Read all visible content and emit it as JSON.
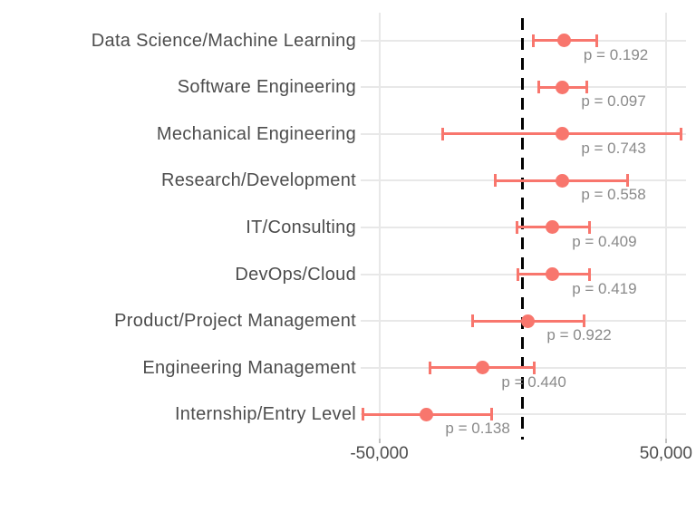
{
  "chart_data": {
    "type": "scatter",
    "subtype": "forest-plot-with-error-bars",
    "title": "",
    "xlabel": "",
    "ylabel": "",
    "xlim": [
      -56500,
      57000
    ],
    "grid": true,
    "legend": null,
    "reference_line_x": 0,
    "x_ticks": [
      {
        "value": -50000,
        "label": "-50,000"
      },
      {
        "value": 50000,
        "label": "50,000"
      }
    ],
    "rows": [
      {
        "category": "Data Science/Machine Learning",
        "estimate": 14500,
        "ci_low": 3600,
        "ci_high": 25800,
        "p_label": "p = 0.192"
      },
      {
        "category": "Software Engineering",
        "estimate": 13700,
        "ci_low": 5500,
        "ci_high": 22300,
        "p_label": "p = 0.097"
      },
      {
        "category": "Mechanical Engineering",
        "estimate": 13700,
        "ci_low": -28000,
        "ci_high": 55400,
        "p_label": "p = 0.743"
      },
      {
        "category": "Research/Development",
        "estimate": 13700,
        "ci_low": -9400,
        "ci_high": 36700,
        "p_label": "p = 0.558"
      },
      {
        "category": "IT/Consulting",
        "estimate": 10500,
        "ci_low": -2100,
        "ci_high": 23200,
        "p_label": "p = 0.409"
      },
      {
        "category": "DevOps/Cloud",
        "estimate": 10500,
        "ci_low": -1600,
        "ci_high": 23200,
        "p_label": "p = 0.419"
      },
      {
        "category": "Product/Project Management",
        "estimate": 1700,
        "ci_low": -17300,
        "ci_high": 21300,
        "p_label": "p = 0.922"
      },
      {
        "category": "Engineering Management",
        "estimate": -14100,
        "ci_low": -32400,
        "ci_high": 3900,
        "p_label": "p = 0.440"
      },
      {
        "category": "Internship/Entry Level",
        "estimate": -33700,
        "ci_low": -55800,
        "ci_high": -10900,
        "p_label": "p = 0.138"
      }
    ]
  },
  "colors": {
    "point": "#F8766D",
    "errorbar": "#F8766D",
    "reference_line": "#000000",
    "gridline": "#E8E8E8",
    "axis_tick": "#C0C0C0",
    "category_text": "#4D4D4D",
    "axis_text": "#4D4D4D",
    "p_text": "#8A8A8A",
    "background": "#FFFFFF"
  }
}
